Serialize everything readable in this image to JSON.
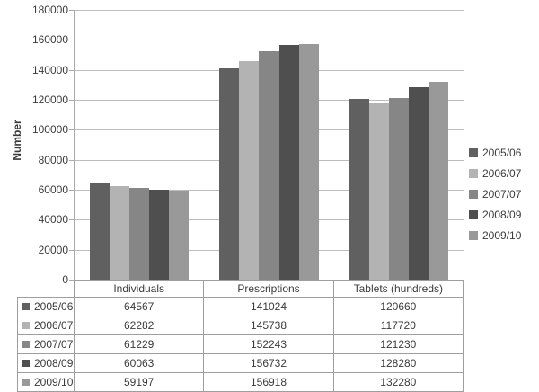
{
  "chart_data": {
    "type": "bar",
    "ylabel": "Number",
    "categories": [
      "Individuals",
      "Prescriptions",
      "Tablets (hundreds)"
    ],
    "series": [
      {
        "name": "2005/06",
        "color": "#606060",
        "values": [
          64567,
          141024,
          120660
        ]
      },
      {
        "name": "2006/07",
        "color": "#b3b3b3",
        "values": [
          62282,
          145738,
          117720
        ]
      },
      {
        "name": "2007/07",
        "color": "#868686",
        "values": [
          61229,
          152243,
          121230
        ]
      },
      {
        "name": "2008/09",
        "color": "#4f4f4f",
        "values": [
          60063,
          156732,
          128280
        ]
      },
      {
        "name": "2009/10",
        "color": "#999999",
        "values": [
          59197,
          156918,
          132280
        ]
      }
    ],
    "ylim": [
      0,
      180000
    ],
    "ytick_step": 20000,
    "ytick_labels": [
      "0",
      "20000",
      "40000",
      "60000",
      "80000",
      "100000",
      "120000",
      "140000",
      "160000",
      "180000"
    ],
    "grid": true,
    "legend_position": "right",
    "show_data_table": true
  },
  "colors": {
    "axis": "#a9a9a9",
    "gridline": "#bcbcbc",
    "table_border": "#9e9e9e",
    "text": "#3a3a3a"
  }
}
